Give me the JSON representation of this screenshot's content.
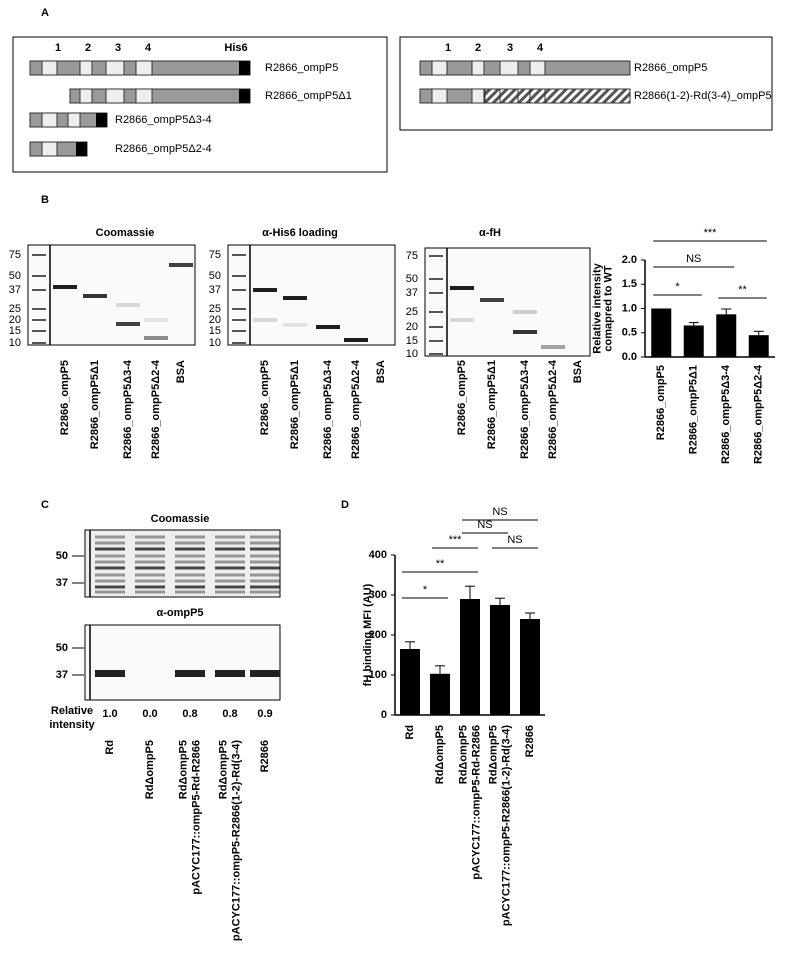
{
  "panel_a": {
    "label": "A",
    "domain_labels": [
      "1",
      "2",
      "3",
      "4"
    ],
    "tag_label": "His6",
    "constructs": [
      "R2866_ompP5",
      "R2866_ompP5Δ1",
      "R2866_ompP5Δ3-4",
      "R2866_ompP5Δ2-4"
    ],
    "chimera_domain_labels": [
      "1",
      "2",
      "3",
      "4"
    ],
    "chimera_constructs": [
      "R2866_ompP5",
      "R2866(1-2)-Rd(3-4)_ompP5"
    ]
  },
  "panel_b": {
    "label": "B",
    "gels": [
      {
        "title": "Coomassie",
        "markers": [
          "75",
          "50",
          "37",
          "25",
          "20",
          "15",
          "10"
        ]
      },
      {
        "title": "α-His6 loading",
        "markers": [
          "75",
          "50",
          "37",
          "25",
          "20",
          "15",
          "10"
        ]
      },
      {
        "title": "α-fH",
        "markers": [
          "75",
          "50",
          "37",
          "25",
          "20",
          "15",
          "10"
        ]
      }
    ],
    "lanes": [
      "R2866_ompP5",
      "R2866_ompP5Δ1",
      "R2866_ompP5Δ3-4",
      "R2866_ompP5Δ2-4",
      "BSA"
    ]
  },
  "panel_c": {
    "label": "C",
    "gels": [
      {
        "title": "Coomassie",
        "markers": [
          "50",
          "37"
        ]
      },
      {
        "title": "α-ompP5",
        "markers": [
          "50",
          "37"
        ]
      }
    ],
    "relative_intensity_label": [
      "Relative",
      "intensity"
    ],
    "relative_intensity": [
      "1.0",
      "0.0",
      "0.8",
      "0.8",
      "0.9"
    ],
    "lanes": [
      [
        "Rd"
      ],
      [
        "RdΔompP5"
      ],
      [
        "RdΔompP5",
        "pACYC177::ompP5-Rd-R2866"
      ],
      [
        "RdΔompP5",
        "pACYC177::ompP5-R2866(1-2)-Rd(3-4)"
      ],
      [
        "R2866"
      ]
    ]
  },
  "panel_d": {
    "label": "D"
  },
  "chart_data": [
    {
      "type": "bar",
      "ylabel": [
        "Relative intensity",
        "comapred to WT"
      ],
      "categories": [
        "R2866_ompP5",
        "R2866_ompP5Δ1",
        "R2866_ompP5Δ3-4",
        "R2866_ompP5Δ2-4"
      ],
      "values": [
        1.0,
        0.65,
        0.88,
        0.45
      ],
      "errors": [
        null,
        0.06,
        0.11,
        0.08
      ],
      "color": "#000000",
      "ylim": [
        0,
        2.0
      ],
      "yticks": [
        {
          "value": 0,
          "label": "0.0"
        },
        0.5,
        {
          "value": 1,
          "label": "1.0"
        },
        1.5,
        {
          "value": 2,
          "label": "2.0"
        }
      ],
      "significance": [
        "***",
        "NS",
        "*",
        "**"
      ]
    },
    {
      "type": "bar",
      "ylabel": [
        "fH binding MFI (AU)"
      ],
      "categories": [
        [
          "Rd"
        ],
        [
          "RdΔompP5"
        ],
        [
          "RdΔompP5",
          "pACYC177::ompP5-Rd-R2866"
        ],
        [
          "RdΔompP5",
          "pACYC177::ompP5-R2866(1-2)-Rd(3-4)"
        ],
        [
          "R2866"
        ]
      ],
      "values": [
        165,
        103,
        290,
        275,
        240
      ],
      "errors": [
        18,
        20,
        32,
        17,
        15
      ],
      "color": "#000000",
      "ylim": [
        0,
        400
      ],
      "yticks": [
        0,
        100,
        200,
        300,
        400
      ],
      "significance": [
        "*",
        "**",
        "***",
        "NS",
        "NS",
        "NS"
      ]
    }
  ]
}
